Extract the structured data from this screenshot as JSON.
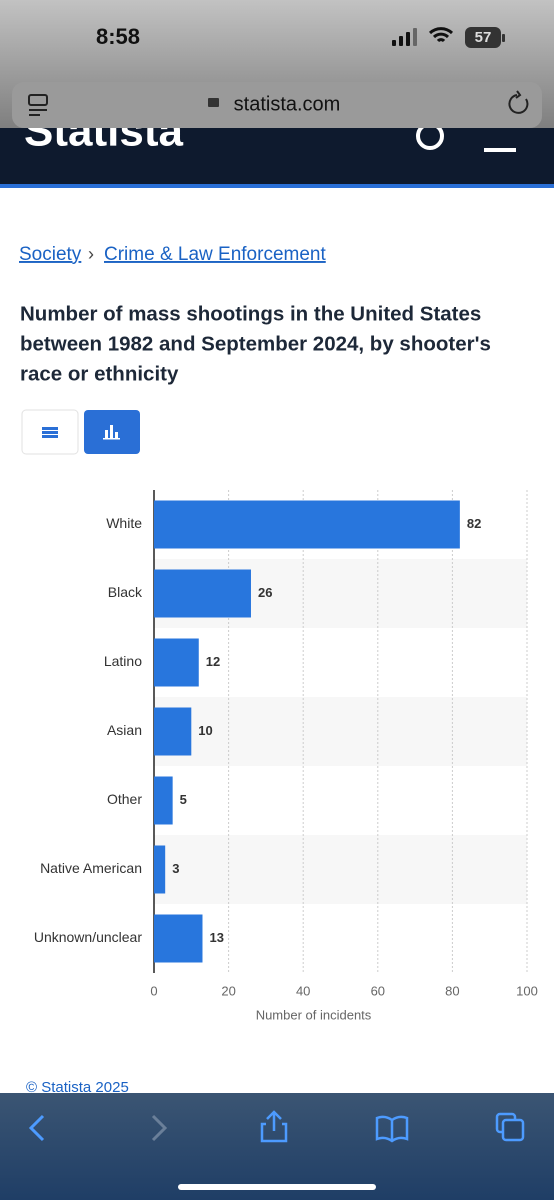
{
  "status_bar": {
    "time": "8:58",
    "battery": "57"
  },
  "browser": {
    "url": "statista.com"
  },
  "header": {
    "logo": "Statista"
  },
  "breadcrumbs": {
    "items": [
      "Society",
      "Crime & Law Enforcement"
    ],
    "separator": "›"
  },
  "chart_data": {
    "type": "bar",
    "orientation": "horizontal",
    "title": [
      "Number of mass shootings in the United States",
      "between 1982 and September 2024, by shooter's",
      "race or ethnicity"
    ],
    "categories": [
      "White",
      "Black",
      "Latino",
      "Asian",
      "Other",
      "Native American",
      "Unknown/unclear"
    ],
    "values": [
      82,
      26,
      12,
      10,
      5,
      3,
      13
    ],
    "color": "#2876dd",
    "x_label": "Number of incidents",
    "xlim": [
      0,
      100
    ],
    "xticks": [
      0,
      20,
      40,
      60,
      80,
      100
    ],
    "grid": true
  },
  "footer": {
    "copyright": "© Statista 2025"
  }
}
